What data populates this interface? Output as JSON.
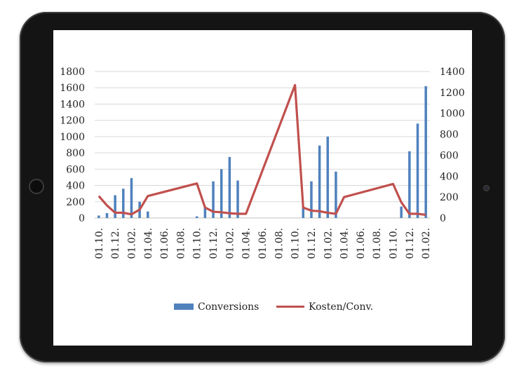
{
  "chart_data": {
    "type": "bar",
    "x_tick_labels": [
      "01.10.",
      "01.12.",
      "01.02.",
      "01.04.",
      "01.06.",
      "01.08.",
      "01.10.",
      "01.12.",
      "01.02.",
      "01.04.",
      "01.06.",
      "01.08.",
      "01.10.",
      "01.12.",
      "01.02.",
      "01.04.",
      "01.06.",
      "01.08.",
      "01.10.",
      "01.12.",
      "01.02."
    ],
    "y_left": {
      "lim": [
        0,
        1800
      ],
      "ticks": [
        0,
        200,
        400,
        600,
        800,
        1000,
        1200,
        1400,
        1600,
        1800
      ]
    },
    "y_right": {
      "lim": [
        0,
        1400
      ],
      "ticks": [
        0,
        200,
        400,
        600,
        800,
        1000,
        1200,
        1400
      ]
    },
    "grid": "horizontal",
    "legend_position": "bottom",
    "series": [
      {
        "name": "Conversions",
        "kind": "bar",
        "axis": "left",
        "color": "#4f81bd",
        "points": [
          [
            0,
            30
          ],
          [
            1,
            60
          ],
          [
            2,
            280
          ],
          [
            3,
            360
          ],
          [
            4,
            490
          ],
          [
            5,
            200
          ],
          [
            6,
            80
          ],
          [
            12,
            20
          ],
          [
            13,
            140
          ],
          [
            14,
            450
          ],
          [
            15,
            600
          ],
          [
            16,
            750
          ],
          [
            17,
            460
          ],
          [
            25,
            130
          ],
          [
            26,
            450
          ],
          [
            27,
            890
          ],
          [
            28,
            1000
          ],
          [
            29,
            570
          ],
          [
            37,
            140
          ],
          [
            38,
            820
          ],
          [
            39,
            1160
          ],
          [
            40,
            1620
          ]
        ]
      },
      {
        "name": "Kosten/Conv.",
        "kind": "line",
        "axis": "right",
        "color": "#c0504d",
        "points": [
          [
            0,
            210
          ],
          [
            1,
            120
          ],
          [
            2,
            50
          ],
          [
            3,
            50
          ],
          [
            4,
            35
          ],
          [
            5,
            80
          ],
          [
            6,
            210
          ],
          [
            12,
            330
          ],
          [
            13,
            100
          ],
          [
            14,
            60
          ],
          [
            15,
            55
          ],
          [
            16,
            45
          ],
          [
            17,
            40
          ],
          [
            18,
            40
          ],
          [
            24,
            1270
          ],
          [
            25,
            100
          ],
          [
            26,
            70
          ],
          [
            27,
            65
          ],
          [
            28,
            50
          ],
          [
            29,
            40
          ],
          [
            30,
            200
          ],
          [
            36,
            325
          ],
          [
            37,
            150
          ],
          [
            38,
            40
          ],
          [
            39,
            40
          ],
          [
            40,
            30
          ]
        ]
      }
    ]
  }
}
